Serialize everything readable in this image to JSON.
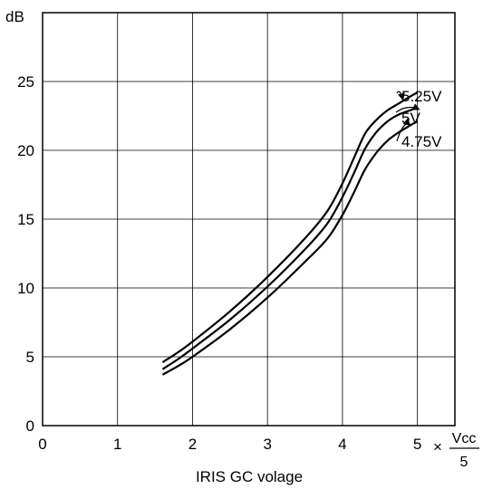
{
  "chart_data": {
    "type": "line",
    "title": "",
    "ylabel": "dB",
    "xlabel": "IRIS GC volage",
    "x_unit_prefix": "×",
    "x_unit_numerator": "Vcc",
    "x_unit_denominator": "5",
    "xlim": [
      0,
      5.5
    ],
    "ylim": [
      0,
      30
    ],
    "x_ticks": [
      "0",
      "1",
      "2",
      "3",
      "4",
      "5"
    ],
    "y_ticks": [
      "0",
      "5",
      "10",
      "15",
      "20",
      "25"
    ],
    "grid": true,
    "series": [
      {
        "name": "5.25V",
        "x": [
          1.6,
          1.8,
          2.0,
          2.5,
          3.0,
          3.5,
          3.8,
          4.0,
          4.15,
          4.3,
          4.45,
          4.6,
          4.75,
          4.9,
          5.0
        ],
        "y": [
          4.6,
          5.3,
          6.1,
          8.3,
          10.8,
          13.6,
          15.6,
          17.6,
          19.4,
          21.2,
          22.2,
          22.9,
          23.4,
          23.9,
          24.2
        ]
      },
      {
        "name": "5V",
        "x": [
          1.6,
          1.8,
          2.0,
          2.5,
          3.0,
          3.5,
          3.8,
          4.0,
          4.15,
          4.3,
          4.45,
          4.6,
          4.75,
          4.9,
          5.0
        ],
        "y": [
          4.1,
          4.8,
          5.6,
          7.7,
          10.1,
          12.8,
          14.7,
          16.6,
          18.3,
          20.1,
          21.3,
          22.1,
          22.6,
          22.9,
          23.1
        ]
      },
      {
        "name": "4.75V",
        "x": [
          1.6,
          1.8,
          2.0,
          2.5,
          3.0,
          3.5,
          3.8,
          4.0,
          4.15,
          4.3,
          4.45,
          4.6,
          4.75,
          4.9,
          5.0
        ],
        "y": [
          3.7,
          4.3,
          5.0,
          7.0,
          9.3,
          11.9,
          13.6,
          15.3,
          16.9,
          18.6,
          19.8,
          20.7,
          21.3,
          21.8,
          22.1
        ]
      }
    ]
  }
}
